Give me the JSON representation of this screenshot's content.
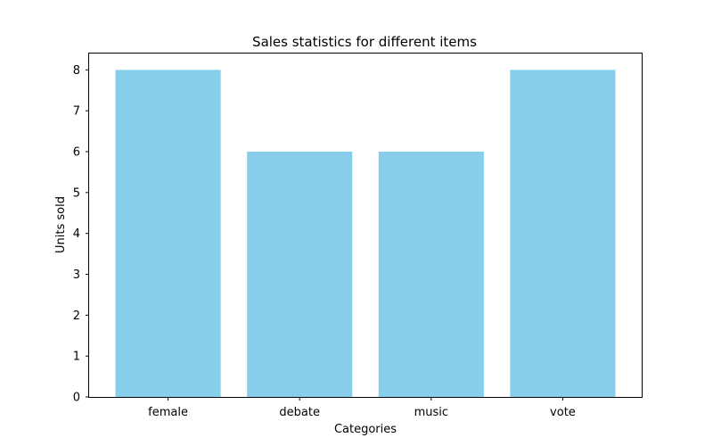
{
  "chart_data": {
    "type": "bar",
    "title": "Sales statistics for different items",
    "xlabel": "Categories",
    "ylabel": "Units sold",
    "categories": [
      "female",
      "debate",
      "music",
      "vote"
    ],
    "values": [
      8,
      6,
      6,
      8
    ],
    "ylim": [
      0,
      8.4
    ],
    "yticks": [
      0,
      1,
      2,
      3,
      4,
      5,
      6,
      7,
      8
    ],
    "bar_color": "#87ceeb",
    "grid": false,
    "legend": "none"
  }
}
